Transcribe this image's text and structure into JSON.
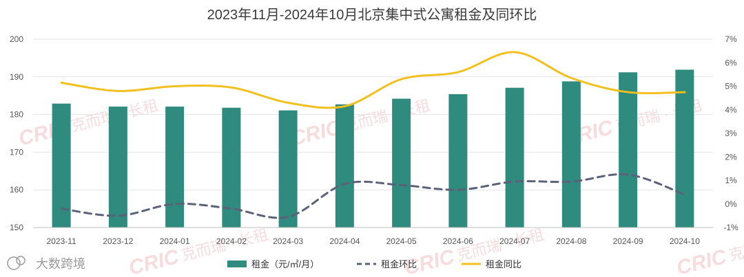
{
  "chart_data": {
    "type": "bar+line",
    "title": "2023年11月-2024年10月北京集中式公寓租金及同环比",
    "categories": [
      "2023-11",
      "2023-12",
      "2024-01",
      "2024-02",
      "2024-03",
      "2024-04",
      "2024-05",
      "2024-06",
      "2024-07",
      "2024-08",
      "2024-09",
      "2024-10"
    ],
    "series": [
      {
        "name": "租金（元/㎡/月）",
        "type": "bar",
        "axis": "left",
        "color": "#2e8b7e",
        "values": [
          182.9,
          182.1,
          182.1,
          181.8,
          181.1,
          182.7,
          184.2,
          185.4,
          187.1,
          188.8,
          191.2,
          191.9
        ]
      },
      {
        "name": "租金环比",
        "type": "line",
        "style": "dashed",
        "axis": "right",
        "color": "#5a6178",
        "values": [
          -0.2,
          -0.5,
          0.0,
          -0.2,
          -0.55,
          0.85,
          0.8,
          0.6,
          0.95,
          0.95,
          1.25,
          0.4
        ]
      },
      {
        "name": "租金同比",
        "type": "line",
        "style": "solid",
        "axis": "right",
        "color": "#f2c01e",
        "values": [
          5.15,
          4.8,
          5.0,
          4.95,
          4.3,
          4.15,
          5.3,
          5.6,
          6.45,
          5.35,
          4.75,
          4.75
        ]
      }
    ],
    "y_left": {
      "min": 150,
      "max": 200,
      "ticks": [
        150,
        160,
        170,
        180,
        190,
        200
      ]
    },
    "y_right": {
      "min": -1,
      "max": 7,
      "ticks": [
        -1,
        0,
        1,
        2,
        3,
        4,
        5,
        6,
        7
      ],
      "tick_labels": [
        "-1%",
        "0%",
        "1%",
        "2%",
        "3%",
        "4%",
        "5%",
        "6%",
        "7%"
      ]
    },
    "legend_position": "bottom-center"
  },
  "watermark": {
    "brand": "CRIC",
    "text": "克而瑞 · 长租",
    "source": "大数跨境"
  }
}
